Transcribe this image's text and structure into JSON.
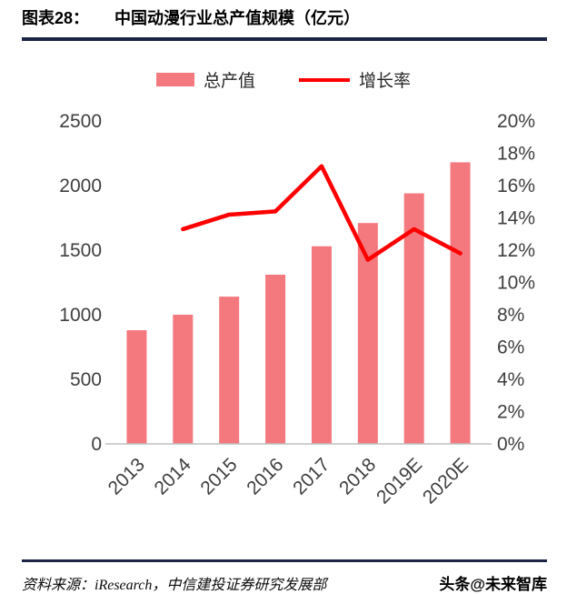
{
  "header": {
    "label": "图表28：",
    "title": "中国动漫行业总产值规模（亿元）"
  },
  "legend": {
    "bar_label": "总产值",
    "line_label": "增长率"
  },
  "chart_data": {
    "type": "bar",
    "subtype": "bar+line combo, dual axis",
    "title": "中国动漫行业总产值规模（亿元）",
    "categories": [
      "2013",
      "2014",
      "2015",
      "2016",
      "2017",
      "2018",
      "2019E",
      "2020E"
    ],
    "series": [
      {
        "name": "总产值",
        "type": "bar",
        "axis": "left",
        "color": "#F4797F",
        "values": [
          880,
          1000,
          1140,
          1310,
          1530,
          1710,
          1940,
          2180
        ]
      },
      {
        "name": "增长率",
        "type": "line",
        "axis": "right",
        "color": "#FE0000",
        "values": [
          null,
          13.3,
          14.2,
          14.4,
          17.2,
          11.4,
          13.3,
          11.8
        ]
      }
    ],
    "left_axis": {
      "min": 0,
      "max": 2500,
      "step": 500,
      "ticks": [
        "0",
        "500",
        "1000",
        "1500",
        "2000",
        "2500"
      ]
    },
    "right_axis": {
      "min": 0,
      "max": 20,
      "step": 2,
      "ticks": [
        "0%",
        "2%",
        "4%",
        "6%",
        "8%",
        "10%",
        "12%",
        "14%",
        "16%",
        "18%",
        "20%"
      ]
    },
    "grid": false,
    "legend_position": "top",
    "xlabel": "",
    "ylabel_left": "",
    "ylabel_right": ""
  },
  "footer": {
    "source": "资料来源：iResearch，中信建投证券研究发展部",
    "watermark": "头条@未来智库"
  },
  "colors": {
    "bar": "#F4797F",
    "line": "#FE0000",
    "rule": "#1B2442",
    "axis_text": "#3F3F3F",
    "baseline": "#BFBFBF"
  }
}
